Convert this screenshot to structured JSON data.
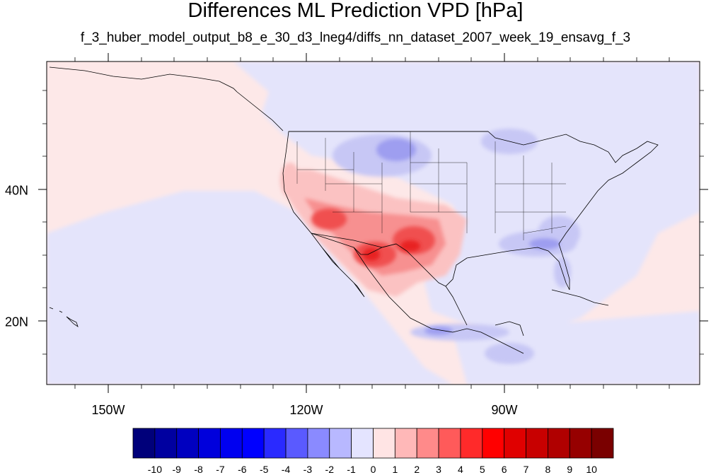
{
  "title": "Differences ML Prediction VPD [hPa]",
  "subtitle": "f_3_huber_model_output_b8_e_30_d3_lneg4/diffs_nn_dataset_2007_week_19_ensavg_f_3",
  "lon_labels": [
    "150W",
    "120W",
    "90W"
  ],
  "lat_labels": [
    "40N",
    "20N"
  ],
  "colorbar": {
    "labels": [
      "-10",
      "-9",
      "-8",
      "-7",
      "-6",
      "-5",
      "-4",
      "-3",
      "-2",
      "-1",
      "0",
      "1",
      "2",
      "3",
      "4",
      "5",
      "6",
      "7",
      "8",
      "9",
      "10"
    ],
    "colors": [
      "#00007a",
      "#0000a0",
      "#0000c0",
      "#0000dc",
      "#0000f0",
      "#0000ff",
      "#2a2aff",
      "#5a5aff",
      "#8a8aff",
      "#b8b8ff",
      "#e4e4ff",
      "#ffe4e4",
      "#ffb8b8",
      "#ff8a8a",
      "#ff5a5a",
      "#ff2a2a",
      "#ff0000",
      "#e00000",
      "#c80000",
      "#b00000",
      "#960000",
      "#7a0000"
    ]
  },
  "map_colors": {
    "ocean_neutral_pos": "#fde8e8",
    "neutral_neg": "#e4e4fb",
    "light_blue": "#c7c7f5",
    "mid_blue": "#9e9ef0",
    "strong_blue": "#7a7ae6",
    "light_red": "#fbc2c2",
    "mid_red": "#f79090",
    "strong_red": "#f05050",
    "deep_red": "#e82020"
  }
}
